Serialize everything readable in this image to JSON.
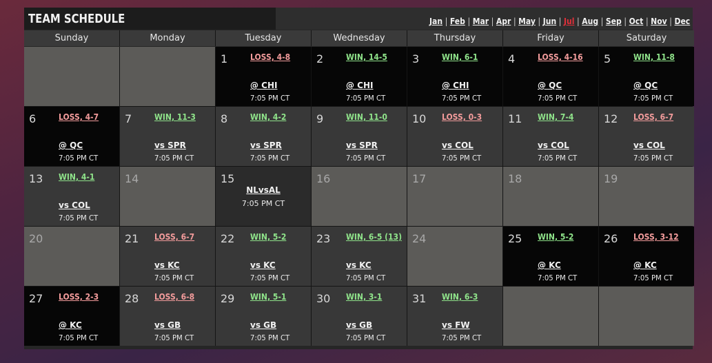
{
  "title": "TEAM SCHEDULE",
  "months": [
    {
      "label": "Jan",
      "active": false
    },
    {
      "label": "Feb",
      "active": false
    },
    {
      "label": "Mar",
      "active": false
    },
    {
      "label": "Apr",
      "active": false
    },
    {
      "label": "May",
      "active": false
    },
    {
      "label": "Jun",
      "active": false
    },
    {
      "label": "Jul",
      "active": true
    },
    {
      "label": "Aug",
      "active": false
    },
    {
      "label": "Sep",
      "active": false
    },
    {
      "label": "Oct",
      "active": false
    },
    {
      "label": "Nov",
      "active": false
    },
    {
      "label": "Dec",
      "active": false
    }
  ],
  "weekdays": [
    "Sunday",
    "Monday",
    "Tuesday",
    "Wednesday",
    "Thursday",
    "Friday",
    "Saturday"
  ],
  "colors": {
    "win": "#8fe38a",
    "loss": "#f29b9b",
    "active_month": "#e0303a",
    "away_cell": "#060606",
    "home_cell": "#383838",
    "off_cell": "#5c5b58"
  },
  "cells": [
    {
      "kind": "blank"
    },
    {
      "kind": "blank"
    },
    {
      "kind": "away",
      "day": "1",
      "result": "LOSS, 4-8",
      "outcome": "loss",
      "opponent": "@ CHI",
      "time": "7:05 PM CT"
    },
    {
      "kind": "away",
      "day": "2",
      "result": "WIN, 14-5",
      "outcome": "win",
      "opponent": "@ CHI",
      "time": "7:05 PM CT"
    },
    {
      "kind": "away",
      "day": "3",
      "result": "WIN, 6-1",
      "outcome": "win",
      "opponent": "@ CHI",
      "time": "7:05 PM CT"
    },
    {
      "kind": "away",
      "day": "4",
      "result": "LOSS, 4-16",
      "outcome": "loss",
      "opponent": "@ QC",
      "time": "7:05 PM CT"
    },
    {
      "kind": "away",
      "day": "5",
      "result": "WIN, 11-8",
      "outcome": "win",
      "opponent": "@ QC",
      "time": "7:05 PM CT"
    },
    {
      "kind": "away",
      "day": "6",
      "result": "LOSS, 4-7",
      "outcome": "loss",
      "opponent": "@ QC",
      "time": "7:05 PM CT"
    },
    {
      "kind": "home",
      "day": "7",
      "result": "WIN, 11-3",
      "outcome": "win",
      "opponent": "vs SPR",
      "time": "7:05 PM CT"
    },
    {
      "kind": "home",
      "day": "8",
      "result": "WIN, 4-2",
      "outcome": "win",
      "opponent": "vs SPR",
      "time": "7:05 PM CT"
    },
    {
      "kind": "home",
      "day": "9",
      "result": "WIN, 11-0",
      "outcome": "win",
      "opponent": "vs SPR",
      "time": "7:05 PM CT"
    },
    {
      "kind": "home",
      "day": "10",
      "result": "LOSS, 0-3",
      "outcome": "loss",
      "opponent": "vs COL",
      "time": "7:05 PM CT"
    },
    {
      "kind": "home",
      "day": "11",
      "result": "WIN, 7-4",
      "outcome": "win",
      "opponent": "vs COL",
      "time": "7:05 PM CT"
    },
    {
      "kind": "home",
      "day": "12",
      "result": "LOSS, 6-7",
      "outcome": "loss",
      "opponent": "vs COL",
      "time": "7:05 PM CT"
    },
    {
      "kind": "home",
      "day": "13",
      "result": "WIN, 4-1",
      "outcome": "win",
      "opponent": "vs COL",
      "time": "7:05 PM CT"
    },
    {
      "kind": "off",
      "day": "14"
    },
    {
      "kind": "special",
      "day": "15",
      "event": "NLvsAL",
      "time": "7:05 PM CT"
    },
    {
      "kind": "off",
      "day": "16"
    },
    {
      "kind": "off",
      "day": "17"
    },
    {
      "kind": "off",
      "day": "18"
    },
    {
      "kind": "off",
      "day": "19"
    },
    {
      "kind": "off",
      "day": "20"
    },
    {
      "kind": "home",
      "day": "21",
      "result": "LOSS, 6-7",
      "outcome": "loss",
      "opponent": "vs KC",
      "time": "7:05 PM CT"
    },
    {
      "kind": "home",
      "day": "22",
      "result": "WIN, 5-2",
      "outcome": "win",
      "opponent": "vs KC",
      "time": "7:05 PM CT"
    },
    {
      "kind": "home",
      "day": "23",
      "result": "WIN, 6-5 (13)",
      "outcome": "win",
      "opponent": "vs KC",
      "time": "7:05 PM CT"
    },
    {
      "kind": "off",
      "day": "24"
    },
    {
      "kind": "away",
      "day": "25",
      "result": "WIN, 5-2",
      "outcome": "win",
      "opponent": "@ KC",
      "time": "7:05 PM CT"
    },
    {
      "kind": "away",
      "day": "26",
      "result": "LOSS, 3-12",
      "outcome": "loss",
      "opponent": "@ KC",
      "time": "7:05 PM CT"
    },
    {
      "kind": "away",
      "day": "27",
      "result": "LOSS, 2-3",
      "outcome": "loss",
      "opponent": "@ KC",
      "time": "7:05 PM CT"
    },
    {
      "kind": "home",
      "day": "28",
      "result": "LOSS, 6-8",
      "outcome": "loss",
      "opponent": "vs GB",
      "time": "7:05 PM CT"
    },
    {
      "kind": "home",
      "day": "29",
      "result": "WIN, 5-1",
      "outcome": "win",
      "opponent": "vs GB",
      "time": "7:05 PM CT"
    },
    {
      "kind": "home",
      "day": "30",
      "result": "WIN, 3-1",
      "outcome": "win",
      "opponent": "vs GB",
      "time": "7:05 PM CT"
    },
    {
      "kind": "home",
      "day": "31",
      "result": "WIN, 6-3",
      "outcome": "win",
      "opponent": "vs FW",
      "time": "7:05 PM CT"
    },
    {
      "kind": "blank"
    },
    {
      "kind": "blank"
    }
  ]
}
